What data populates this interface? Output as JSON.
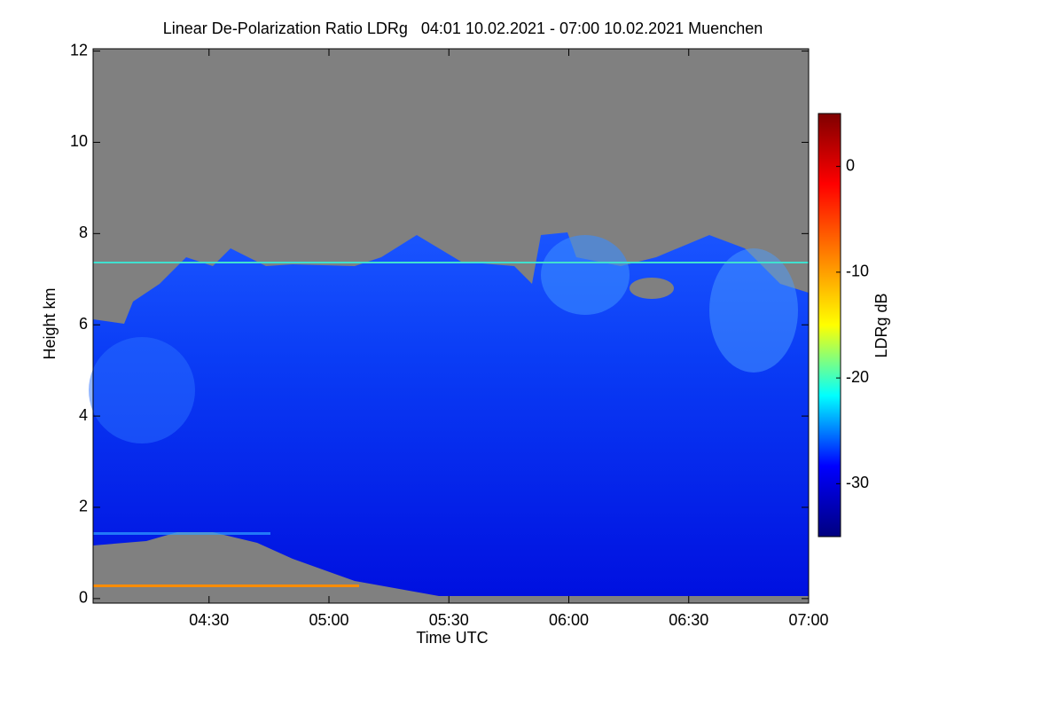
{
  "chart_data": {
    "type": "heatmap",
    "title": "Linear De-Polarization Ratio LDRg   04:01 10.02.2021 - 07:00 10.02.2021 Muenchen",
    "xlabel": "Time UTC",
    "ylabel": "Height km",
    "xlim": [
      241,
      420
    ],
    "xticks": [
      {
        "value": 270,
        "label": "04:30"
      },
      {
        "value": 300,
        "label": "05:00"
      },
      {
        "value": 330,
        "label": "05:30"
      },
      {
        "value": 360,
        "label": "06:00"
      },
      {
        "value": 390,
        "label": "06:30"
      },
      {
        "value": 420,
        "label": "07:00"
      }
    ],
    "ylim": [
      -0.1,
      12.05
    ],
    "yticks": [
      0,
      2,
      4,
      6,
      8,
      10,
      12
    ],
    "colorbar": {
      "label": "LDRg dB",
      "lim": [
        -35,
        5
      ],
      "ticks": [
        0,
        -10,
        -20,
        -30
      ],
      "colormap": [
        "#00007f",
        "#0000ff",
        "#00ffff",
        "#ffff00",
        "#ff7f00",
        "#ff0000",
        "#7f0000"
      ]
    }
  }
}
